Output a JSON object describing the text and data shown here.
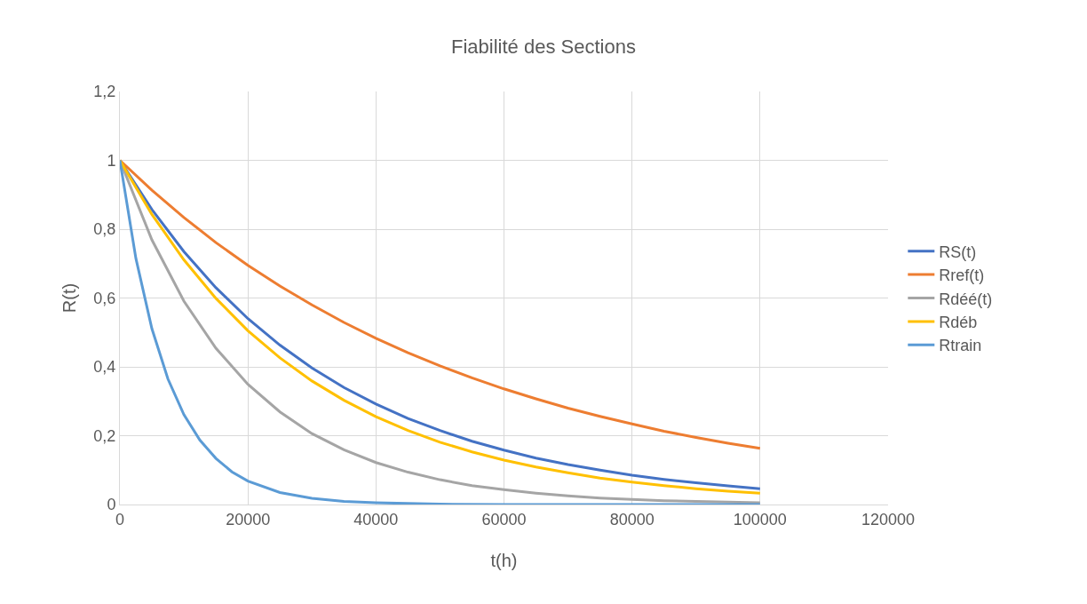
{
  "chart_data": {
    "type": "line",
    "title": "Fiabilité des Sections",
    "xlabel": "t(h)",
    "ylabel": "R(t)",
    "x": [
      0,
      5000,
      10000,
      15000,
      20000,
      25000,
      30000,
      35000,
      40000,
      45000,
      50000,
      55000,
      60000,
      65000,
      70000,
      75000,
      80000,
      85000,
      90000,
      95000,
      100000
    ],
    "series": [
      {
        "name": "RS(t)",
        "color": "#4472c4",
        "values": [
          1,
          0.857,
          0.735,
          0.63,
          0.54,
          0.463,
          0.397,
          0.34,
          0.292,
          0.25,
          0.215,
          0.184,
          0.158,
          0.135,
          0.116,
          0.1,
          0.085,
          0.073,
          0.063,
          0.054,
          0.046
        ]
      },
      {
        "name": "Rref(t)",
        "color": "#ed7d31",
        "values": [
          1,
          0.913,
          0.834,
          0.761,
          0.695,
          0.635,
          0.58,
          0.529,
          0.483,
          0.441,
          0.403,
          0.368,
          0.336,
          0.307,
          0.28,
          0.256,
          0.234,
          0.213,
          0.195,
          0.178,
          0.163
        ]
      },
      {
        "name": "Rdéé(t)",
        "color": "#a5a5a5",
        "values": [
          1,
          0.769,
          0.591,
          0.454,
          0.349,
          0.269,
          0.206,
          0.159,
          0.122,
          0.094,
          0.072,
          0.055,
          0.043,
          0.033,
          0.025,
          0.019,
          0.015,
          0.011,
          0.009,
          0.007,
          0.005
        ]
      },
      {
        "name": "Rdéb",
        "color": "#ffc000",
        "values": [
          1,
          0.843,
          0.711,
          0.599,
          0.505,
          0.426,
          0.359,
          0.303,
          0.255,
          0.215,
          0.181,
          0.153,
          0.129,
          0.109,
          0.092,
          0.077,
          0.065,
          0.055,
          0.046,
          0.039,
          0.033
        ]
      },
      {
        "name": "Rtrain",
        "color": "#5b9bd5",
        "x": [
          0,
          2500,
          5000,
          7500,
          10000,
          12500,
          15000,
          17500,
          20000,
          25000,
          30000,
          35000,
          40000,
          50000,
          60000,
          80000,
          100000
        ],
        "values": [
          1,
          0.715,
          0.511,
          0.365,
          0.261,
          0.187,
          0.134,
          0.095,
          0.068,
          0.035,
          0.018,
          0.009,
          0.005,
          0.001,
          0,
          0,
          0
        ]
      }
    ],
    "xlim": [
      0,
      120000
    ],
    "xticks": [
      0,
      20000,
      40000,
      60000,
      80000,
      100000,
      120000
    ],
    "ylim": [
      0,
      1.2
    ],
    "yticks": [
      {
        "value": 0,
        "label": "0"
      },
      {
        "value": 0.2,
        "label": "0,2"
      },
      {
        "value": 0.4,
        "label": "0,4"
      },
      {
        "value": 0.6,
        "label": "0,6"
      },
      {
        "value": 0.8,
        "label": "0,8"
      },
      {
        "value": 1,
        "label": "1"
      },
      {
        "value": 1.2,
        "label": "1,2"
      }
    ],
    "grid": true,
    "legend": "right",
    "marker": "none",
    "line_style": "solid"
  }
}
